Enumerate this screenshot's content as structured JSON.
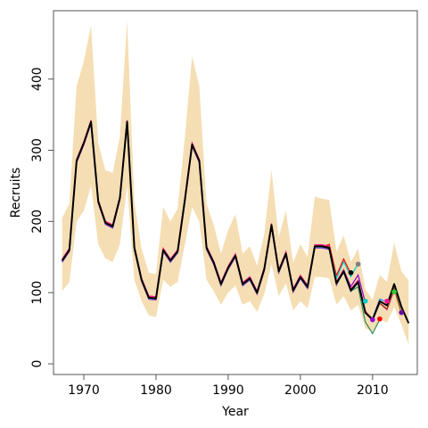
{
  "chart_data": {
    "type": "line",
    "title": "",
    "xlabel": "Year",
    "ylabel": "Recruits",
    "xlim": [
      1965.8,
      2016.2
    ],
    "ylim": [
      -15,
      496
    ],
    "xticks": [
      1970,
      1980,
      1990,
      2000,
      2010
    ],
    "yticks": [
      0,
      100,
      200,
      300,
      400
    ],
    "grid": false,
    "legend": "none",
    "colors": {
      "band": "#f5deb3",
      "main": "#000000",
      "peels": [
        "#ff0000",
        "#00cccc",
        "#9400d3",
        "#ff8c00",
        "#2e8b57",
        "#1e90ff",
        "#ff1493",
        "#8b4513",
        "#808080"
      ]
    },
    "series": [
      {
        "role": "estimate",
        "x": [
          1967,
          1968,
          1969,
          1970,
          1971,
          1972,
          1973,
          1974,
          1975,
          1976,
          1977,
          1978,
          1979,
          1980,
          1981,
          1982,
          1983,
          1984,
          1985,
          1986,
          1987,
          1988,
          1989,
          1990,
          1991,
          1992,
          1993,
          1994,
          1995,
          1996,
          1997,
          1998,
          1999,
          2000,
          2001,
          2002,
          2003,
          2004,
          2005,
          2006,
          2007,
          2008,
          2009,
          2010,
          2011,
          2012,
          2013,
          2014,
          2015
        ],
        "values": [
          145,
          160,
          285,
          310,
          340,
          228,
          198,
          193,
          233,
          340,
          163,
          118,
          93,
          92,
          160,
          145,
          158,
          230,
          308,
          285,
          163,
          142,
          112,
          135,
          152,
          112,
          120,
          100,
          133,
          195,
          130,
          155,
          103,
          122,
          108,
          165,
          165,
          163,
          113,
          130,
          103,
          115,
          72,
          62,
          88,
          82,
          112,
          80,
          57
        ],
        "lower": [
          102,
          115,
          200,
          215,
          250,
          168,
          148,
          143,
          168,
          250,
          118,
          88,
          68,
          66,
          118,
          108,
          115,
          168,
          220,
          200,
          118,
          102,
          83,
          100,
          110,
          83,
          88,
          73,
          98,
          140,
          95,
          113,
          75,
          88,
          78,
          122,
          122,
          120,
          83,
          95,
          75,
          83,
          50,
          45,
          63,
          58,
          80,
          55,
          27
        ],
        "upper": [
          205,
          225,
          390,
          425,
          475,
          310,
          272,
          268,
          320,
          482,
          228,
          162,
          128,
          126,
          220,
          200,
          218,
          318,
          432,
          390,
          225,
          195,
          155,
          188,
          210,
          155,
          165,
          138,
          182,
          272,
          178,
          215,
          142,
          168,
          150,
          235,
          232,
          230,
          158,
          180,
          143,
          162,
          105,
          90,
          125,
          115,
          170,
          130,
          117
        ]
      }
    ],
    "retrospective_peels": [
      {
        "end_year": 2007,
        "end_value": 128,
        "color": "#000000",
        "offset": 2
      },
      {
        "end_year": 2008,
        "end_value": 140,
        "color": "#808080",
        "offset": -1
      },
      {
        "end_year": 2009,
        "end_value": 88,
        "color": "#00cccc",
        "offset": 3
      },
      {
        "end_year": 2010,
        "end_value": 62,
        "color": "#9400d3",
        "offset": -2
      },
      {
        "end_year": 2011,
        "end_value": 63,
        "color": "#ff0000",
        "offset": 1
      },
      {
        "end_year": 2012,
        "end_value": 88,
        "color": "#ff1493",
        "offset": 2
      },
      {
        "end_year": 2013,
        "end_value": 101,
        "color": "#32cd32",
        "offset": -3
      },
      {
        "end_year": 2014,
        "end_value": 72,
        "color": "#6a0dad",
        "offset": 1
      }
    ]
  }
}
